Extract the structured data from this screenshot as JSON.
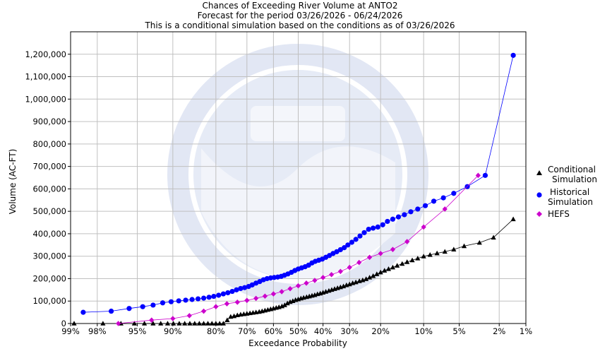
{
  "colors": {
    "conditional": "#000000",
    "historical": "#0000ff",
    "hefs": "#cc00cc",
    "grid": "#c0c0c0",
    "watermark": "#dde3f2"
  },
  "chart_data": {
    "type": "line",
    "title_lines": [
      "Chances of Exceeding River Volume at ANTO2",
      "Forecast for the period 03/26/2026 - 06/24/2026",
      "This is a conditional simulation based on the conditions as of 03/26/2026"
    ],
    "xlabel": "Exceedance Probability",
    "ylabel": "Volume (AC-FT)",
    "x_scale": "normal-probability",
    "xlim": [
      99,
      1
    ],
    "ylim": [
      0,
      1300000
    ],
    "x_ticks": [
      {
        "p": 99,
        "label": "99%"
      },
      {
        "p": 98,
        "label": "98%"
      },
      {
        "p": 95,
        "label": "95%"
      },
      {
        "p": 90,
        "label": "90%"
      },
      {
        "p": 80,
        "label": "80%"
      },
      {
        "p": 70,
        "label": "70%"
      },
      {
        "p": 60,
        "label": "60%"
      },
      {
        "p": 50,
        "label": "50%"
      },
      {
        "p": 40,
        "label": "40%"
      },
      {
        "p": 30,
        "label": "30%"
      },
      {
        "p": 20,
        "label": "20%"
      },
      {
        "p": 10,
        "label": "10%"
      },
      {
        "p": 5,
        "label": "5%"
      },
      {
        "p": 2,
        "label": "2%"
      },
      {
        "p": 1,
        "label": "1%"
      }
    ],
    "y_ticks": [
      {
        "v": 0,
        "label": "0"
      },
      {
        "v": 100000,
        "label": "100,000"
      },
      {
        "v": 200000,
        "label": "200,000"
      },
      {
        "v": 300000,
        "label": "300,000"
      },
      {
        "v": 400000,
        "label": "400,000"
      },
      {
        "v": 500000,
        "label": "500,000"
      },
      {
        "v": 600000,
        "label": "600,000"
      },
      {
        "v": 700000,
        "label": "700,000"
      },
      {
        "v": 800000,
        "label": "800,000"
      },
      {
        "v": 900000,
        "label": "900,000"
      },
      {
        "v": 1000000,
        "label": "1,000,000"
      },
      {
        "v": 1100000,
        "label": "1,100,000"
      },
      {
        "v": 1200000,
        "label": "1,200,000"
      }
    ],
    "grid": true,
    "legend_position": "right",
    "series": [
      {
        "name": "Conditional Simulation",
        "marker": "triangle",
        "color_key": "conditional",
        "points": [
          [
            98.9,
            0
          ],
          [
            97.7,
            0
          ],
          [
            96.5,
            0
          ],
          [
            95.3,
            0
          ],
          [
            94.2,
            0
          ],
          [
            93.1,
            0
          ],
          [
            92.0,
            0
          ],
          [
            90.9,
            0
          ],
          [
            89.9,
            0
          ],
          [
            88.8,
            0
          ],
          [
            87.7,
            0
          ],
          [
            86.6,
            0
          ],
          [
            85.5,
            0
          ],
          [
            84.4,
            0
          ],
          [
            83.3,
            0
          ],
          [
            82.2,
            0
          ],
          [
            81.1,
            0
          ],
          [
            80.0,
            0
          ],
          [
            78.9,
            0
          ],
          [
            77.8,
            0
          ],
          [
            76.6,
            15000
          ],
          [
            75.5,
            30000
          ],
          [
            74.4,
            33000
          ],
          [
            73.3,
            37000
          ],
          [
            72.2,
            40000
          ],
          [
            71.1,
            42000
          ],
          [
            70.0,
            44000
          ],
          [
            68.9,
            46000
          ],
          [
            67.8,
            48000
          ],
          [
            66.7,
            50000
          ],
          [
            65.5,
            52000
          ],
          [
            64.4,
            55000
          ],
          [
            63.3,
            58000
          ],
          [
            62.2,
            61000
          ],
          [
            61.1,
            64000
          ],
          [
            60.0,
            67000
          ],
          [
            58.9,
            70000
          ],
          [
            57.8,
            73000
          ],
          [
            56.6,
            77000
          ],
          [
            55.5,
            82000
          ],
          [
            54.4,
            90000
          ],
          [
            53.3,
            96000
          ],
          [
            52.2,
            100000
          ],
          [
            51.1,
            105000
          ],
          [
            50.0,
            108000
          ],
          [
            48.9,
            112000
          ],
          [
            47.8,
            115000
          ],
          [
            46.6,
            118000
          ],
          [
            45.5,
            121000
          ],
          [
            44.4,
            124000
          ],
          [
            43.3,
            127000
          ],
          [
            42.2,
            131000
          ],
          [
            41.1,
            134000
          ],
          [
            40.0,
            138000
          ],
          [
            38.9,
            142000
          ],
          [
            37.7,
            146000
          ],
          [
            36.6,
            150000
          ],
          [
            35.5,
            154000
          ],
          [
            34.4,
            158000
          ],
          [
            33.3,
            162000
          ],
          [
            32.2,
            166000
          ],
          [
            31.1,
            171000
          ],
          [
            30.0,
            175000
          ],
          [
            28.9,
            180000
          ],
          [
            27.8,
            184000
          ],
          [
            26.6,
            189000
          ],
          [
            25.5,
            193000
          ],
          [
            24.4,
            198000
          ],
          [
            23.3,
            205000
          ],
          [
            22.2,
            212000
          ],
          [
            21.1,
            220000
          ],
          [
            20.0,
            228000
          ],
          [
            18.9,
            236000
          ],
          [
            17.8,
            243000
          ],
          [
            16.7,
            250000
          ],
          [
            15.6,
            258000
          ],
          [
            14.4,
            266000
          ],
          [
            13.3,
            274000
          ],
          [
            12.2,
            282000
          ],
          [
            11.1,
            290000
          ],
          [
            10.0,
            299000
          ],
          [
            8.9,
            306000
          ],
          [
            7.8,
            313000
          ],
          [
            6.7,
            320000
          ],
          [
            5.6,
            330000
          ],
          [
            4.5,
            345000
          ],
          [
            3.2,
            360000
          ],
          [
            2.3,
            383000
          ],
          [
            1.4,
            465000
          ]
        ]
      },
      {
        "name": "Historical Simulation",
        "marker": "circle",
        "color_key": "historical",
        "points": [
          [
            98.6,
            50000
          ],
          [
            97.2,
            55000
          ],
          [
            95.8,
            67000
          ],
          [
            94.4,
            75000
          ],
          [
            93.1,
            82000
          ],
          [
            91.7,
            92000
          ],
          [
            90.3,
            97000
          ],
          [
            88.9,
            101000
          ],
          [
            87.5,
            104000
          ],
          [
            86.1,
            107000
          ],
          [
            84.7,
            110000
          ],
          [
            83.3,
            113000
          ],
          [
            81.9,
            117000
          ],
          [
            80.6,
            121000
          ],
          [
            79.2,
            126000
          ],
          [
            77.8,
            132000
          ],
          [
            76.4,
            137000
          ],
          [
            75.0,
            143000
          ],
          [
            73.6,
            150000
          ],
          [
            72.2,
            156000
          ],
          [
            70.8,
            160000
          ],
          [
            69.4,
            165000
          ],
          [
            68.1,
            172000
          ],
          [
            66.7,
            180000
          ],
          [
            65.3,
            187000
          ],
          [
            63.9,
            195000
          ],
          [
            62.5,
            200000
          ],
          [
            61.1,
            203000
          ],
          [
            59.7,
            205000
          ],
          [
            58.3,
            207000
          ],
          [
            56.9,
            210000
          ],
          [
            55.6,
            215000
          ],
          [
            54.2,
            221000
          ],
          [
            52.8,
            228000
          ],
          [
            51.4,
            236000
          ],
          [
            50.0,
            243000
          ],
          [
            48.6,
            248000
          ],
          [
            47.2,
            253000
          ],
          [
            45.8,
            260000
          ],
          [
            44.4,
            270000
          ],
          [
            43.1,
            277000
          ],
          [
            41.7,
            282000
          ],
          [
            40.3,
            287000
          ],
          [
            38.9,
            295000
          ],
          [
            37.5,
            303000
          ],
          [
            36.1,
            312000
          ],
          [
            34.7,
            320000
          ],
          [
            33.3,
            329000
          ],
          [
            31.9,
            338000
          ],
          [
            30.6,
            350000
          ],
          [
            29.2,
            362000
          ],
          [
            27.8,
            375000
          ],
          [
            26.4,
            390000
          ],
          [
            25.0,
            405000
          ],
          [
            23.6,
            420000
          ],
          [
            22.2,
            425000
          ],
          [
            20.8,
            430000
          ],
          [
            19.4,
            440000
          ],
          [
            18.1,
            455000
          ],
          [
            16.7,
            465000
          ],
          [
            15.3,
            475000
          ],
          [
            13.9,
            485000
          ],
          [
            12.5,
            498000
          ],
          [
            11.1,
            510000
          ],
          [
            9.7,
            525000
          ],
          [
            8.3,
            545000
          ],
          [
            6.9,
            560000
          ],
          [
            5.6,
            580000
          ],
          [
            4.2,
            610000
          ],
          [
            2.8,
            660000
          ],
          [
            1.4,
            1195000
          ]
        ]
      },
      {
        "name": "HEFS",
        "marker": "diamond",
        "color_key": "hefs",
        "points": [
          [
            96.7,
            0
          ],
          [
            93.3,
            15000
          ],
          [
            90.0,
            22000
          ],
          [
            86.7,
            35000
          ],
          [
            83.3,
            55000
          ],
          [
            80.0,
            75000
          ],
          [
            76.7,
            88000
          ],
          [
            73.3,
            95000
          ],
          [
            70.0,
            103000
          ],
          [
            66.7,
            112000
          ],
          [
            63.3,
            122000
          ],
          [
            60.0,
            132000
          ],
          [
            56.7,
            142000
          ],
          [
            53.3,
            155000
          ],
          [
            50.0,
            168000
          ],
          [
            46.7,
            180000
          ],
          [
            43.3,
            192000
          ],
          [
            40.0,
            205000
          ],
          [
            36.7,
            218000
          ],
          [
            33.3,
            232000
          ],
          [
            30.0,
            250000
          ],
          [
            26.7,
            272000
          ],
          [
            23.3,
            295000
          ],
          [
            20.0,
            312000
          ],
          [
            16.7,
            330000
          ],
          [
            13.3,
            365000
          ],
          [
            10.0,
            430000
          ],
          [
            6.7,
            510000
          ],
          [
            3.3,
            660000
          ]
        ]
      }
    ]
  }
}
